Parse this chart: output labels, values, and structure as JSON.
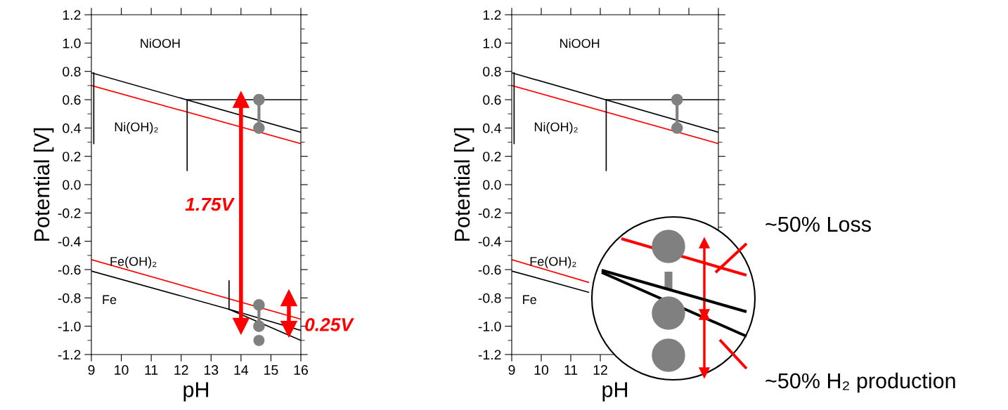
{
  "chart_data": [
    {
      "type": "line",
      "xlabel": "pH",
      "ylabel": "Potential [V]",
      "xlim": [
        9,
        16
      ],
      "ylim": [
        -1.2,
        1.2
      ],
      "xticks": [
        9,
        10,
        11,
        12,
        13,
        14,
        15,
        16
      ],
      "yticks": [
        {
          "value": -1.2,
          "label": "-1.2"
        },
        {
          "value": -1.0,
          "label": "-1.0"
        },
        {
          "value": -0.8,
          "label": "-0.8"
        },
        {
          "value": -0.6,
          "label": "-0.6"
        },
        {
          "value": -0.4,
          "label": "-0.4"
        },
        {
          "value": -0.2,
          "label": "-0.2"
        },
        {
          "value": 0.0,
          "label": "0.0"
        },
        {
          "value": 0.2,
          "label": "0.2"
        },
        {
          "value": 0.4,
          "label": "0.4"
        },
        {
          "value": 0.6,
          "label": "0.6"
        },
        {
          "value": 0.8,
          "label": "0.8"
        },
        {
          "value": 1.0,
          "label": "1.0"
        },
        {
          "value": 1.2,
          "label": "1.2"
        }
      ],
      "grid": false,
      "legend": false,
      "series": [
        {
          "color": "#000000",
          "x": [
            9,
            16
          ],
          "values": [
            0.79,
            0.37
          ]
        },
        {
          "color": "#ff0000",
          "x": [
            9,
            16
          ],
          "values": [
            0.7,
            0.29
          ]
        },
        {
          "color": "#000000",
          "x": [
            9.08,
            9.08
          ],
          "values": [
            0.29,
            0.79
          ]
        },
        {
          "color": "#000000",
          "x": [
            12.2,
            12.2
          ],
          "values": [
            0.1,
            0.6
          ]
        },
        {
          "color": "#000000",
          "x": [
            12.2,
            16
          ],
          "values": [
            0.6,
            0.6
          ]
        },
        {
          "color": "#ff0000",
          "x": [
            9,
            16
          ],
          "values": [
            -0.53,
            -0.95
          ]
        },
        {
          "color": "#000000",
          "x": [
            9,
            13.6,
            16
          ],
          "values": [
            -0.61,
            -0.88,
            -1.03
          ]
        },
        {
          "color": "#000000",
          "x": [
            13.6,
            16
          ],
          "values": [
            -0.88,
            -1.1
          ]
        },
        {
          "color": "#000000",
          "x": [
            13.6,
            13.6
          ],
          "values": [
            -0.88,
            -0.68
          ]
        },
        {
          "color": "#808080",
          "x": [
            14.6,
            14.6
          ],
          "values": [
            0.6,
            0.4
          ],
          "marker": "circle"
        },
        {
          "color": "#808080",
          "x": [
            14.6,
            14.6
          ],
          "values": [
            -0.85,
            -1.0
          ],
          "marker": "circle"
        },
        {
          "type": "scatter",
          "color": "#808080",
          "x": [
            14.6
          ],
          "values": [
            -1.1
          ],
          "marker": "circle"
        },
        {
          "name": "1.75V",
          "color": "#ff0000",
          "x": [
            14,
            14
          ],
          "values": [
            0.6,
            -1.0
          ],
          "marker": "triangle"
        },
        {
          "name": "0.25V",
          "color": "#ff0000",
          "x": [
            15.6,
            15.6
          ],
          "values": [
            -0.8,
            -1.02
          ],
          "marker": "triangle"
        }
      ],
      "annotations": [
        "NiOOH",
        "Ni(OH)₂",
        "Fe(OH)₂",
        "Fe"
      ]
    },
    {
      "type": "line",
      "xlabel": "pH",
      "ylabel": "Potential [V]",
      "xlim": [
        9,
        16
      ],
      "ylim": [
        -1.2,
        1.2
      ],
      "xticks": [
        9,
        10,
        11,
        12,
        {
          "value": 13,
          "label": null
        },
        {
          "value": 14,
          "label": null
        },
        {
          "value": 15,
          "label": null
        },
        {
          "value": 16,
          "label": null
        }
      ],
      "yticks": [
        {
          "value": -1.2,
          "label": "-1.2"
        },
        {
          "value": -1.0,
          "label": "-1.0"
        },
        {
          "value": -0.8,
          "label": "-0.8"
        },
        {
          "value": -0.6,
          "label": "-0.6"
        },
        {
          "value": -0.4,
          "label": "-0.4"
        },
        {
          "value": -0.2,
          "label": "-0.2"
        },
        {
          "value": 0.0,
          "label": "0.0"
        },
        {
          "value": 0.2,
          "label": "0.2"
        },
        {
          "value": 0.4,
          "label": "0.4"
        },
        {
          "value": 0.6,
          "label": "0.6"
        },
        {
          "value": 0.8,
          "label": "0.8"
        },
        {
          "value": 1.0,
          "label": "1.0"
        },
        {
          "value": 1.2,
          "label": "1.2"
        }
      ],
      "grid": false,
      "legend": false,
      "series": [
        {
          "color": "#000000",
          "x": [
            9,
            16
          ],
          "values": [
            0.79,
            0.37
          ]
        },
        {
          "color": "#ff0000",
          "x": [
            9,
            16
          ],
          "values": [
            0.7,
            0.29
          ]
        },
        {
          "color": "#000000",
          "x": [
            9.08,
            9.08
          ],
          "values": [
            0.29,
            0.79
          ]
        },
        {
          "color": "#000000",
          "x": [
            12.2,
            12.2
          ],
          "values": [
            0.1,
            0.6
          ]
        },
        {
          "color": "#000000",
          "x": [
            12.2,
            16
          ],
          "values": [
            0.6,
            0.6
          ]
        },
        {
          "color": "#ff0000",
          "x": [
            9,
            11.6
          ],
          "values": [
            -0.53,
            -0.69
          ]
        },
        {
          "color": "#000000",
          "x": [
            9,
            11.6
          ],
          "values": [
            -0.61,
            -0.76
          ]
        },
        {
          "color": "#808080",
          "x": [
            14.6,
            14.6
          ],
          "values": [
            0.6,
            0.4
          ],
          "marker": "circle"
        }
      ],
      "annotations": [
        "NiOOH",
        "Ni(OH)₂",
        "Fe(OH)₂",
        "Fe",
        "~50% Loss",
        "~50% H₂ production"
      ]
    }
  ]
}
